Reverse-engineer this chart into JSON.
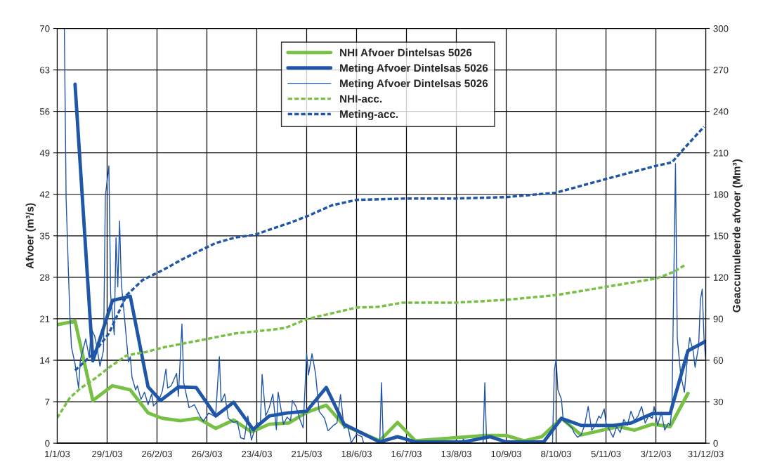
{
  "chart_data": {
    "type": "line",
    "ylabel": "Afvoer (m³/s)",
    "y2label": "Geaccumuleerde afvoer (Mm³)",
    "xlim": [
      "2003-01-01",
      "2003-12-31"
    ],
    "xticks": [
      {
        "value": "2003-01-01",
        "label": "1/1/03"
      },
      {
        "value": "2003-01-29",
        "label": "29/1/03"
      },
      {
        "value": "2003-02-26",
        "label": "26/2/03"
      },
      {
        "value": "2003-03-26",
        "label": "26/3/03"
      },
      {
        "value": "2003-04-23",
        "label": "23/4/03"
      },
      {
        "value": "2003-05-21",
        "label": "21/5/03"
      },
      {
        "value": "2003-06-18",
        "label": "18/6/03"
      },
      {
        "value": "2003-07-16",
        "label": "16/7/03"
      },
      {
        "value": "2003-08-13",
        "label": "13/8/03"
      },
      {
        "value": "2003-09-10",
        "label": "10/9/03"
      },
      {
        "value": "2003-10-08",
        "label": "8/10/03"
      },
      {
        "value": "2003-11-05",
        "label": "5/11/03"
      },
      {
        "value": "2003-12-03",
        "label": "3/12/03"
      },
      {
        "value": "2003-12-31",
        "label": "31/12/03"
      }
    ],
    "ylim": [
      0,
      70
    ],
    "yticks": [
      0,
      7,
      14,
      21,
      28,
      35,
      42,
      49,
      56,
      63,
      70
    ],
    "y2lim": [
      0,
      300
    ],
    "y2ticks": [
      0,
      30,
      60,
      90,
      120,
      150,
      180,
      210,
      240,
      270,
      300
    ],
    "grid": true,
    "legend": "top",
    "series": [
      {
        "name": "NHI Afvoer Dintelsas 5026",
        "color": "#77c043",
        "line_style": "solid",
        "x": [
          "2003-01-01",
          "2003-01-11",
          "2003-01-21",
          "2003-02-01",
          "2003-02-11",
          "2003-02-21",
          "2003-03-01",
          "2003-03-11",
          "2003-03-21",
          "2003-03-31",
          "2003-04-10",
          "2003-04-20",
          "2003-04-30",
          "2003-05-11",
          "2003-05-21",
          "2003-06-01",
          "2003-06-11",
          "2003-07-01",
          "2003-07-11",
          "2003-07-21",
          "2003-08-29",
          "2003-09-10",
          "2003-09-20",
          "2003-09-30",
          "2003-10-11",
          "2003-10-22",
          "2003-11-12",
          "2003-11-21",
          "2003-12-01",
          "2003-12-11",
          "2003-12-21"
        ],
        "values": [
          20.0,
          20.6,
          7.2,
          9.7,
          9.0,
          5.1,
          4.2,
          3.8,
          4.2,
          2.5,
          3.9,
          1.9,
          3.2,
          3.4,
          5.2,
          6.4,
          3.0,
          0.4,
          3.5,
          0.4,
          1.3,
          1.3,
          0.4,
          1.1,
          4.2,
          1.4,
          2.8,
          2.2,
          3.2,
          2.8,
          8.4
        ]
      },
      {
        "name": "Meting Afvoer Dintelsas 5026",
        "color": "#1f56a8",
        "line_style": "solid",
        "x": [
          "2003-01-11",
          "2003-01-21",
          "2003-02-01",
          "2003-02-11",
          "2003-02-21",
          "2003-02-28",
          "2003-03-10",
          "2003-03-20",
          "2003-03-31",
          "2003-04-10",
          "2003-04-21",
          "2003-04-30",
          "2003-05-10",
          "2003-05-21",
          "2003-06-01",
          "2003-06-11",
          "2003-07-01",
          "2003-07-11",
          "2003-07-21",
          "2003-08-17",
          "2003-09-01",
          "2003-09-10",
          "2003-10-01",
          "2003-10-11",
          "2003-10-22",
          "2003-11-09",
          "2003-11-19",
          "2003-12-01",
          "2003-12-11",
          "2003-12-21",
          "2003-12-31"
        ],
        "values": [
          60.6,
          13.9,
          24.1,
          24.8,
          9.5,
          7.2,
          9.5,
          9.4,
          4.6,
          6.9,
          2.3,
          4.6,
          5.1,
          5.4,
          9.4,
          3.2,
          0.2,
          1.1,
          0.2,
          0.2,
          1.1,
          0.2,
          0.2,
          4.2,
          3.0,
          3.0,
          3.4,
          5.0,
          5.0,
          15.6,
          17.2
        ]
      },
      {
        "name": "Meting Afvoer Dintelsas 5026",
        "color": "#1f56a8",
        "line_style": "solid",
        "x": [
          "2003-01-05",
          "2003-01-06",
          "2003-01-08",
          "2003-01-09",
          "2003-01-11",
          "2003-01-13",
          "2003-01-14",
          "2003-01-16",
          "2003-01-17",
          "2003-01-19",
          "2003-01-20",
          "2003-01-22",
          "2003-01-23",
          "2003-01-25",
          "2003-01-27",
          "2003-01-28",
          "2003-01-30",
          "2003-01-31",
          "2003-02-02",
          "2003-02-03",
          "2003-02-04",
          "2003-02-05",
          "2003-02-06",
          "2003-02-08",
          "2003-02-10",
          "2003-02-11",
          "2003-02-12",
          "2003-02-14",
          "2003-02-15",
          "2003-02-17",
          "2003-02-19",
          "2003-02-21",
          "2003-02-23",
          "2003-02-24",
          "2003-02-27",
          "2003-03-01",
          "2003-03-03",
          "2003-03-04",
          "2003-03-06",
          "2003-03-09",
          "2003-03-10",
          "2003-03-12",
          "2003-03-13",
          "2003-03-16",
          "2003-03-19",
          "2003-03-22",
          "2003-03-24",
          "2003-03-27",
          "2003-03-30",
          "2003-03-31",
          "2003-04-02",
          "2003-04-03",
          "2003-04-05",
          "2003-04-07",
          "2003-04-10",
          "2003-04-12",
          "2003-04-14",
          "2003-04-16",
          "2003-04-18",
          "2003-04-20",
          "2003-04-23",
          "2003-04-25",
          "2003-04-26",
          "2003-04-28",
          "2003-04-30",
          "2003-05-02",
          "2003-05-04",
          "2003-05-05",
          "2003-05-08",
          "2003-05-10",
          "2003-05-12",
          "2003-05-13",
          "2003-05-15",
          "2003-05-17",
          "2003-05-19",
          "2003-05-21",
          "2003-05-22",
          "2003-05-24",
          "2003-05-26",
          "2003-05-28",
          "2003-05-31",
          "2003-06-02",
          "2003-06-05",
          "2003-06-07",
          "2003-06-09",
          "2003-06-11",
          "2003-06-13",
          "2003-06-15",
          "2003-06-18",
          "2003-06-21",
          "2003-06-22",
          "2003-07-01",
          "2003-07-02",
          "2003-07-03",
          "2003-08-16",
          "2003-08-17",
          "2003-08-18",
          "2003-08-28",
          "2003-08-29",
          "2003-08-30",
          "2003-10-06",
          "2003-10-07",
          "2003-10-08",
          "2003-10-09",
          "2003-10-11",
          "2003-10-12",
          "2003-10-14",
          "2003-10-17",
          "2003-10-18",
          "2003-10-20",
          "2003-10-22",
          "2003-10-24",
          "2003-10-26",
          "2003-10-28",
          "2003-10-30",
          "2003-11-01",
          "2003-11-02",
          "2003-11-04",
          "2003-11-05",
          "2003-11-07",
          "2003-11-09",
          "2003-11-11",
          "2003-11-13",
          "2003-11-15",
          "2003-11-17",
          "2003-11-19",
          "2003-11-21",
          "2003-11-23",
          "2003-11-25",
          "2003-11-27",
          "2003-11-29",
          "2003-12-01",
          "2003-12-02",
          "2003-12-04",
          "2003-12-06",
          "2003-12-08",
          "2003-12-10",
          "2003-12-11",
          "2003-12-12",
          "2003-12-14",
          "2003-12-15",
          "2003-12-17",
          "2003-12-19",
          "2003-12-21",
          "2003-12-22",
          "2003-12-24",
          "2003-12-25",
          "2003-12-27",
          "2003-12-28",
          "2003-12-29",
          "2003-12-30",
          "2003-12-31"
        ],
        "values": [
          70,
          41.2,
          22.2,
          16.2,
          13.4,
          9.3,
          14.1,
          16.4,
          17.6,
          14.4,
          19.4,
          18.1,
          16.7,
          13.0,
          15.7,
          41.7,
          46.8,
          25.0,
          18.3,
          34.7,
          26.4,
          37.5,
          26.9,
          20.4,
          13.7,
          14.6,
          11.1,
          9.0,
          9.7,
          7.4,
          8.6,
          6.5,
          8.3,
          6.3,
          7.2,
          8.8,
          12.5,
          9.3,
          9.7,
          11.8,
          7.9,
          20.1,
          10.2,
          6.0,
          6.5,
          4.6,
          3.7,
          5.1,
          4.6,
          5.1,
          14.6,
          6.9,
          8.3,
          4.2,
          3.5,
          3.7,
          0.9,
          0.7,
          4.6,
          0.5,
          3.5,
          3.2,
          11.6,
          4.6,
          6.0,
          8.3,
          2.3,
          8.6,
          3.2,
          4.4,
          3.8,
          7.2,
          6.2,
          4.2,
          2.6,
          15.1,
          11.5,
          15.1,
          11.7,
          5.4,
          4.2,
          2.1,
          3.0,
          3.4,
          8.2,
          2.5,
          3.0,
          0.1,
          1.5,
          1.1,
          0,
          0,
          10.2,
          0,
          0,
          0.7,
          0,
          0,
          10.2,
          0,
          0,
          12.2,
          14.2,
          9.0,
          7.4,
          3.8,
          3.4,
          2.6,
          1.8,
          1.0,
          1.4,
          3.0,
          6.2,
          2.2,
          3.0,
          4.6,
          4.2,
          5.8,
          3.4,
          2.2,
          1.0,
          2.8,
          1.8,
          4.0,
          3.0,
          5.4,
          3.8,
          4.6,
          6.2,
          3.4,
          4.6,
          4.2,
          6.2,
          3.0,
          5.2,
          2.2,
          3.4,
          3.0,
          5.8,
          47.2,
          17.8,
          11.4,
          8.6,
          15.4,
          17.8,
          15.4,
          12.8,
          16.4,
          24.2,
          26.0,
          17.8,
          14.0
        ]
      },
      {
        "name": "NHI-acc.",
        "color": "#77c043",
        "line_style": "dashed",
        "axis": "y2",
        "x": [
          "2003-01-01",
          "2003-01-08",
          "2003-01-14",
          "2003-01-22",
          "2003-01-31",
          "2003-02-09",
          "2003-02-20",
          "2003-03-02",
          "2003-03-22",
          "2003-04-11",
          "2003-05-01",
          "2003-05-09",
          "2003-05-21",
          "2003-06-18",
          "2003-06-30",
          "2003-07-14",
          "2003-08-13",
          "2003-09-10",
          "2003-10-08",
          "2003-11-05",
          "2003-12-03",
          "2003-12-13",
          "2003-12-20"
        ],
        "values": [
          18.3,
          32.7,
          39.7,
          46.6,
          55.6,
          63.5,
          66,
          69.4,
          74.4,
          79.4,
          82,
          83.4,
          89.7,
          98.1,
          98.6,
          101.7,
          101.7,
          103.7,
          107.1,
          113.1,
          119.1,
          123.9,
          129.4
        ]
      },
      {
        "name": "Meting-acc.",
        "color": "#1f56a8",
        "line_style": "dashed",
        "axis": "y2",
        "x": [
          "2003-01-11",
          "2003-01-21",
          "2003-01-30",
          "2003-02-09",
          "2003-02-18",
          "2003-03-01",
          "2003-03-12",
          "2003-03-23",
          "2003-03-31",
          "2003-04-11",
          "2003-04-22",
          "2003-05-01",
          "2003-05-10",
          "2003-05-21",
          "2003-06-04",
          "2003-06-18",
          "2003-07-16",
          "2003-08-13",
          "2003-09-10",
          "2003-10-08",
          "2003-11-05",
          "2003-12-03",
          "2003-12-12",
          "2003-12-19",
          "2003-12-30"
        ],
        "values": [
          52.6,
          64.5,
          79.4,
          107.1,
          118.1,
          125,
          132.9,
          139.9,
          144.8,
          148.8,
          150.8,
          154.8,
          158.7,
          164,
          172,
          176,
          177,
          177,
          178,
          181.2,
          191.1,
          200.6,
          203.1,
          213.4,
          228.9
        ]
      }
    ]
  }
}
